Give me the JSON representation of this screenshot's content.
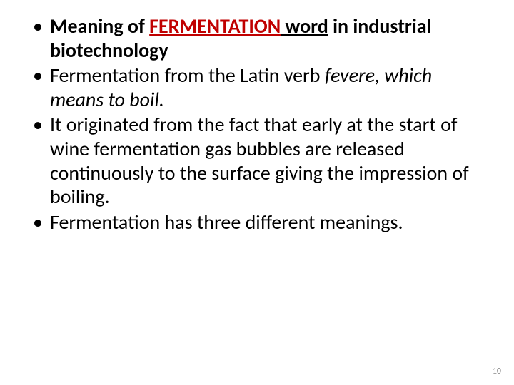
{
  "meta": {
    "page_number": "10",
    "background_color": "#ffffff",
    "text_color": "#000000",
    "accent_red": "#c00000",
    "page_number_color": "#898989",
    "base_font_size_pt": 28,
    "page_number_font_size_pt": 12
  },
  "bullets": {
    "b1": {
      "prefix": "Meaning of ",
      "highlight": "FERMENTATION",
      "suffix_a": " word",
      "suffix_b": "  in industrial biotechnology"
    },
    "b2": {
      "prefix": "Fermentation from the Latin verb ",
      "italic": "fevere, which means to boil."
    },
    "b3": {
      "text": "It originated from the fact that early at the start of wine fermentation gas bubbles are released continuously to the surface giving the impression of boiling."
    },
    "b4": {
      "text": "Fermentation has three different meanings."
    }
  }
}
